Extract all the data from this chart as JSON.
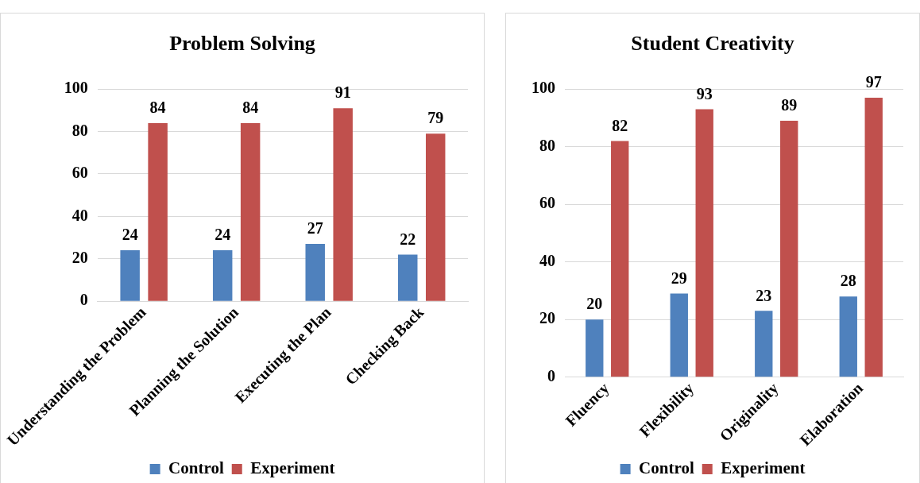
{
  "chart_data": [
    {
      "type": "bar",
      "title": "Problem Solving",
      "categories": [
        "Understanding the Problem",
        "Planning the Solution",
        "Executing the Plan",
        "Checking Back"
      ],
      "series": [
        {
          "name": "Control",
          "color": "#4f81bd",
          "values": [
            24,
            24,
            27,
            22
          ]
        },
        {
          "name": "Experiment",
          "color": "#c0504d",
          "values": [
            84,
            84,
            91,
            79
          ]
        }
      ],
      "ylim": [
        0,
        100
      ],
      "yticks": [
        0,
        20,
        40,
        60,
        80,
        100
      ],
      "grid": "y",
      "legend": "bottom",
      "data_labels": true
    },
    {
      "type": "bar",
      "title": "Student Creativity",
      "categories": [
        "Fluency",
        "Flexibility",
        "Originality",
        "Elaboration"
      ],
      "series": [
        {
          "name": "Control",
          "color": "#4f81bd",
          "values": [
            20,
            29,
            23,
            28
          ]
        },
        {
          "name": "Experiment",
          "color": "#c0504d",
          "values": [
            82,
            93,
            89,
            97
          ]
        }
      ],
      "ylim": [
        0,
        100
      ],
      "yticks": [
        0,
        20,
        40,
        60,
        80,
        100
      ],
      "grid": "y",
      "legend": "bottom",
      "data_labels": true
    }
  ]
}
